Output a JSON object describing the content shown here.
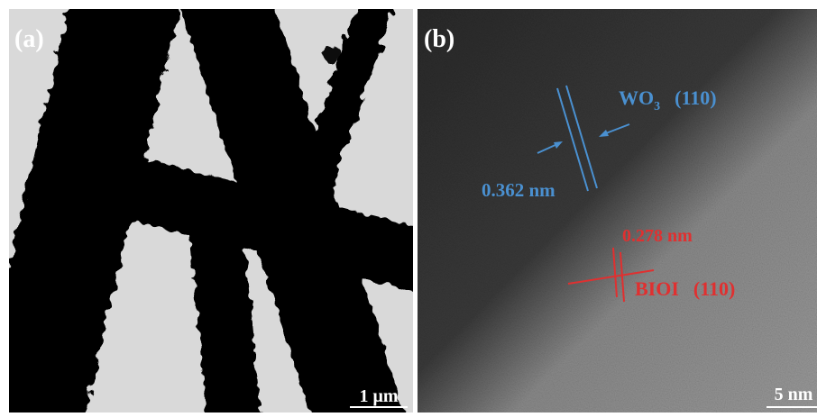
{
  "panels": [
    {
      "label": "(a)",
      "scale_bar": "1 μm"
    },
    {
      "label": "(b)",
      "scale_bar": "5 nm",
      "annotations": [
        {
          "material": "WO",
          "subscript": "3",
          "plane": "(110)",
          "spacing": "0.362 nm"
        },
        {
          "material": "BIOI",
          "plane": "(110)",
          "spacing": "0.278 nm"
        }
      ]
    }
  ]
}
